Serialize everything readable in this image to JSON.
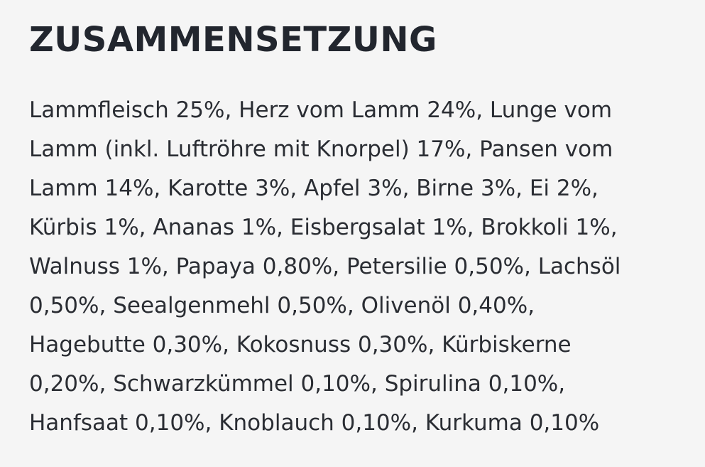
{
  "section": {
    "title": "ZUSAMMENSETZUNG",
    "lines": [
      "Lammfleisch 25%, Herz vom Lamm 24%, Lunge vom",
      "Lamm (inkl. Luftröhre mit Knorpel) 17%, Pansen vom",
      "Lamm 14%, Karotte 3%, Apfel 3%, Birne 3%, Ei 2%,",
      "Kürbis 1%, Ananas 1%, Eisbergsalat 1%, Brokkoli 1%,",
      "Walnuss 1%, Papaya 0,80%, Petersilie 0,50%, Lachsöl",
      "0,50%, Seealgenmehl 0,50%, Olivenöl 0,40%,",
      "Hagebutte 0,30%, Kokosnuss 0,30%, Kürbiskerne",
      "0,20%, Schwarzkümmel 0,10%, Spirulina 0,10%,",
      "Hanfsaat 0,10%, Knoblauch 0,10%, Kurkuma 0,10%"
    ]
  }
}
